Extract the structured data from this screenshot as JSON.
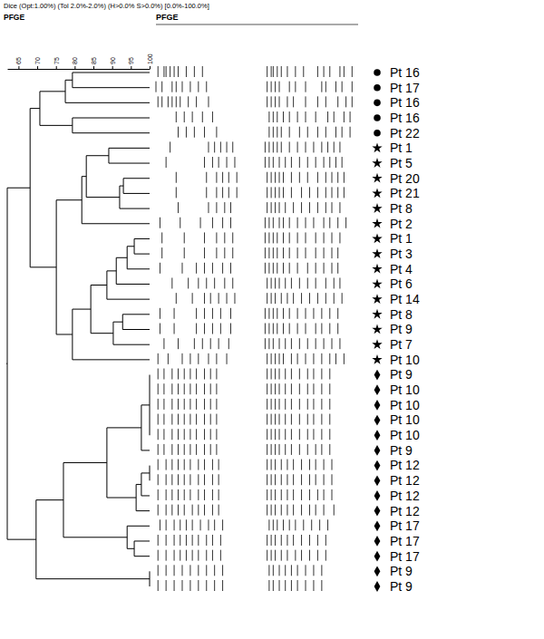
{
  "chart_data": {
    "type": "dendrogram",
    "subtitle": "Dice (Opt:1.00%) (Tol 2.0%-2.0%) (H>0.0% S>0.0%) [0.0%-100.0%]",
    "title": "PFGE",
    "gel_title": "PFGE",
    "xlim": [
      62,
      100
    ],
    "xticks": [
      65,
      70,
      75,
      80,
      85,
      90,
      95,
      100
    ],
    "band_range": [
      0,
      100
    ],
    "leaves": [
      {
        "label": "Pt 16",
        "marker": "circle",
        "bands": [
          1,
          4,
          5,
          7,
          9,
          11,
          15,
          19,
          23,
          55,
          57,
          58,
          60,
          62,
          65,
          69,
          73,
          80,
          83,
          86,
          91,
          93,
          97
        ]
      },
      {
        "label": "Pt 17",
        "marker": "circle",
        "bands": [
          0,
          3,
          8,
          10,
          13,
          17,
          21,
          25,
          55,
          57,
          59,
          61,
          66,
          69,
          74,
          82,
          84,
          89,
          92,
          97
        ]
      },
      {
        "label": "Pt 16",
        "marker": "circle",
        "bands": [
          1,
          3,
          6,
          8,
          10,
          12,
          16,
          20,
          26,
          55,
          57,
          59,
          61,
          65,
          68,
          74,
          80,
          84,
          90,
          94,
          97
        ]
      },
      {
        "label": "Pt 16",
        "marker": "circle",
        "bands": [
          10,
          14,
          18,
          23,
          28,
          56,
          58,
          60,
          63,
          66,
          70,
          74,
          79,
          85,
          88,
          93,
          96
        ]
      },
      {
        "label": "Pt 22",
        "marker": "circle",
        "bands": [
          11,
          15,
          19,
          24,
          30,
          56,
          58,
          60,
          62,
          66,
          71,
          75,
          80,
          84,
          89,
          92,
          96
        ]
      },
      {
        "label": "Pt 1",
        "marker": "star",
        "bands": [
          7,
          26,
          29,
          32,
          35,
          38,
          54,
          56,
          58,
          60,
          62,
          66,
          70,
          74,
          78,
          82,
          85,
          88,
          91
        ]
      },
      {
        "label": "Pt 5",
        "marker": "star",
        "bands": [
          5,
          24,
          28,
          31,
          35,
          39,
          54,
          56,
          58,
          61,
          64,
          67,
          71,
          75,
          79,
          83,
          86,
          89,
          92
        ]
      },
      {
        "label": "Pt 20",
        "marker": "star",
        "bands": [
          10,
          25,
          30,
          33,
          36,
          40,
          55,
          57,
          59,
          61,
          63,
          67,
          71,
          75,
          80,
          84,
          87,
          90,
          93
        ]
      },
      {
        "label": "Pt 21",
        "marker": "star",
        "bands": [
          10,
          25,
          30,
          33,
          36,
          40,
          55,
          57,
          59,
          61,
          63,
          67,
          72,
          76,
          80,
          84,
          87,
          90,
          93
        ]
      },
      {
        "label": "Pt 8",
        "marker": "star",
        "bands": [
          11,
          26,
          30,
          34,
          37,
          55,
          57,
          59,
          61,
          64,
          68,
          72,
          76,
          80,
          84,
          87,
          91
        ]
      },
      {
        "label": "Pt 2",
        "marker": "star",
        "bands": [
          2,
          12,
          22,
          28,
          33,
          37,
          54,
          56,
          58,
          61,
          63,
          66,
          70,
          74,
          78,
          83,
          86,
          90,
          94
        ]
      },
      {
        "label": "Pt 1",
        "marker": "star",
        "bands": [
          3,
          14,
          24,
          30,
          34,
          38,
          54,
          56,
          58,
          60,
          63,
          66,
          70,
          74,
          79,
          83,
          87,
          91
        ]
      },
      {
        "label": "Pt 3",
        "marker": "star",
        "bands": [
          3,
          14,
          24,
          30,
          34,
          38,
          54,
          56,
          58,
          60,
          63,
          66,
          70,
          74,
          79,
          83,
          87,
          90
        ]
      },
      {
        "label": "Pt 4",
        "marker": "star",
        "bands": [
          2,
          13,
          20,
          24,
          28,
          33,
          37,
          54,
          56,
          58,
          60,
          63,
          66,
          70,
          75,
          79,
          83,
          87,
          90
        ]
      },
      {
        "label": "Pt 6",
        "marker": "star",
        "bands": [
          8,
          16,
          21,
          25,
          29,
          34,
          38,
          55,
          57,
          59,
          61,
          64,
          67,
          71,
          75,
          79,
          84,
          88,
          91
        ]
      },
      {
        "label": "Pt 14",
        "marker": "star",
        "bands": [
          10,
          18,
          24,
          27,
          31,
          35,
          39,
          55,
          57,
          59,
          62,
          65,
          68,
          72,
          76,
          80,
          84,
          88,
          92
        ]
      },
      {
        "label": "Pt 8",
        "marker": "star",
        "bands": [
          2,
          9,
          20,
          24,
          28,
          32,
          37,
          54,
          56,
          58,
          60,
          63,
          66,
          70,
          74,
          78,
          82,
          86,
          90
        ]
      },
      {
        "label": "Pt 9",
        "marker": "star",
        "bands": [
          2,
          9,
          20,
          24,
          28,
          32,
          37,
          54,
          56,
          58,
          60,
          63,
          66,
          70,
          74,
          79,
          82,
          86,
          90
        ]
      },
      {
        "label": "Pt 7",
        "marker": "star",
        "bands": [
          4,
          11,
          19,
          23,
          27,
          31,
          36,
          54,
          56,
          58,
          61,
          64,
          67,
          71,
          75,
          79,
          83,
          87,
          91
        ]
      },
      {
        "label": "Pt 10",
        "marker": "star",
        "bands": [
          1,
          6,
          13,
          17,
          21,
          26,
          30,
          35,
          55,
          57,
          59,
          61,
          63,
          67,
          70,
          74,
          78,
          82,
          86,
          89,
          93
        ]
      },
      {
        "label": "Pt 9",
        "marker": "diamond",
        "bands": [
          1,
          4,
          8,
          11,
          14,
          17,
          20,
          24,
          27,
          30,
          55,
          57,
          59,
          61,
          64,
          67,
          71,
          75,
          78,
          82,
          86
        ]
      },
      {
        "label": "Pt 10",
        "marker": "diamond",
        "bands": [
          1,
          4,
          8,
          11,
          14,
          17,
          20,
          24,
          27,
          30,
          55,
          57,
          59,
          61,
          64,
          67,
          71,
          75,
          78,
          82,
          86
        ]
      },
      {
        "label": "Pt 10",
        "marker": "diamond",
        "bands": [
          1,
          4,
          8,
          11,
          14,
          17,
          20,
          24,
          27,
          30,
          55,
          57,
          59,
          61,
          64,
          67,
          71,
          75,
          78,
          82,
          86
        ]
      },
      {
        "label": "Pt 10",
        "marker": "diamond",
        "bands": [
          1,
          4,
          8,
          11,
          14,
          17,
          20,
          24,
          27,
          30,
          55,
          57,
          59,
          61,
          64,
          67,
          71,
          75,
          78,
          82,
          86
        ]
      },
      {
        "label": "Pt 10",
        "marker": "diamond",
        "bands": [
          1,
          4,
          8,
          11,
          14,
          17,
          20,
          24,
          27,
          30,
          55,
          57,
          59,
          61,
          64,
          67,
          71,
          75,
          78,
          82,
          86
        ]
      },
      {
        "label": "Pt 9",
        "marker": "diamond",
        "bands": [
          1,
          4,
          8,
          11,
          14,
          17,
          20,
          24,
          27,
          30,
          55,
          57,
          59,
          61,
          64,
          67,
          71,
          75,
          79,
          82,
          86
        ]
      },
      {
        "label": "Pt 12",
        "marker": "diamond",
        "bands": [
          1,
          5,
          8,
          11,
          14,
          17,
          21,
          24,
          28,
          31,
          55,
          57,
          59,
          62,
          65,
          68,
          72,
          76,
          79,
          83,
          87
        ]
      },
      {
        "label": "Pt 12",
        "marker": "diamond",
        "bands": [
          1,
          5,
          8,
          11,
          14,
          17,
          21,
          24,
          28,
          31,
          55,
          57,
          59,
          62,
          65,
          68,
          72,
          76,
          79,
          83,
          87
        ]
      },
      {
        "label": "Pt 12",
        "marker": "diamond",
        "bands": [
          1,
          5,
          8,
          11,
          14,
          17,
          21,
          24,
          28,
          31,
          55,
          57,
          59,
          62,
          65,
          68,
          72,
          76,
          80,
          83,
          87
        ]
      },
      {
        "label": "Pt 12",
        "marker": "diamond",
        "bands": [
          1,
          5,
          8,
          11,
          14,
          18,
          21,
          24,
          28,
          31,
          55,
          57,
          59,
          62,
          65,
          68,
          72,
          76,
          79,
          83,
          88
        ]
      },
      {
        "label": "Pt 17",
        "marker": "diamond",
        "bands": [
          2,
          5,
          9,
          12,
          15,
          18,
          22,
          26,
          29,
          33,
          56,
          58,
          60,
          63,
          66,
          69,
          73,
          77,
          81,
          85
        ]
      },
      {
        "label": "Pt 17",
        "marker": "diamond",
        "bands": [
          1,
          5,
          9,
          12,
          15,
          18,
          21,
          25,
          28,
          32,
          55,
          57,
          59,
          62,
          65,
          68,
          72,
          76,
          80,
          84
        ]
      },
      {
        "label": "Pt 17",
        "marker": "diamond",
        "bands": [
          1,
          5,
          9,
          12,
          15,
          18,
          21,
          25,
          28,
          32,
          55,
          57,
          59,
          62,
          65,
          69,
          72,
          76,
          80,
          84
        ]
      },
      {
        "label": "Pt 9",
        "marker": "diamond",
        "bands": [
          1,
          5,
          9,
          13,
          17,
          21,
          25,
          29,
          33,
          56,
          58,
          61,
          64,
          67,
          70,
          74,
          78,
          82
        ]
      },
      {
        "label": "Pt 9",
        "marker": "diamond",
        "bands": [
          1,
          5,
          9,
          13,
          17,
          21,
          25,
          29,
          33,
          56,
          58,
          61,
          64,
          67,
          70,
          74,
          78,
          82
        ]
      }
    ],
    "tree": {
      "similarity": 62.0,
      "children": [
        {
          "similarity": 68.1,
          "children": [
            {
              "similarity": 70.7,
              "children": [
                {
                  "similarity": 77.5,
                  "children": [
                    {
                      "similarity": 79.4,
                      "children": [
                        0,
                        1
                      ]
                    },
                    2
                  ]
                },
                {
                  "similarity": 79.4,
                  "children": [
                    3,
                    4
                  ]
                }
              ]
            },
            {
              "similarity": 75.1,
              "children": [
                {
                  "similarity": 81.9,
                  "children": [
                    {
                      "similarity": 83.1,
                      "children": [
                        {
                          "similarity": 89.1,
                          "children": [
                            5,
                            6
                          ]
                        },
                        {
                          "similarity": 92.0,
                          "children": [
                            {
                              "similarity": 93.0,
                              "children": [
                                7,
                                8
                              ]
                            },
                            9
                          ]
                        }
                      ]
                    },
                    10
                  ]
                },
                {
                  "similarity": 79.4,
                  "children": [
                    {
                      "similarity": 84.3,
                      "children": [
                        {
                          "similarity": 88.6,
                          "children": [
                            {
                              "similarity": 91.1,
                              "children": [
                                {
                                  "similarity": 94.0,
                                  "children": [
                                    {
                                      "similarity": 95.9,
                                      "children": [
                                        11,
                                        12
                                      ]
                                    },
                                    13
                                  ]
                                },
                                14
                              ]
                            },
                            15
                          ]
                        },
                        {
                          "similarity": 90.3,
                          "children": [
                            {
                              "similarity": 92.8,
                              "children": [
                                16,
                                17
                              ]
                            },
                            18
                          ]
                        }
                      ]
                    },
                    19
                  ]
                }
              ]
            }
          ]
        },
        {
          "similarity": 69.7,
          "children": [
            {
              "similarity": 77.0,
              "children": [
                {
                  "similarity": 88.6,
                  "children": [
                    {
                      "similarity": 97.8,
                      "children": [
                        {
                          "similarity": 100,
                          "children": [
                            20,
                            21,
                            22,
                            23,
                            24
                          ]
                        },
                        25
                      ]
                    },
                    {
                      "similarity": 96.4,
                      "children": [
                        {
                          "similarity": 97.8,
                          "children": [
                            {
                              "similarity": 100,
                              "children": [
                                26,
                                27
                              ]
                            },
                            28
                          ]
                        },
                        29
                      ]
                    }
                  ]
                },
                {
                  "similarity": 94.0,
                  "children": [
                    30,
                    {
                      "similarity": 95.9,
                      "children": [
                        31,
                        32
                      ]
                    }
                  ]
                }
              ]
            },
            {
              "similarity": 100,
              "children": [
                33,
                34
              ]
            }
          ]
        }
      ]
    }
  }
}
